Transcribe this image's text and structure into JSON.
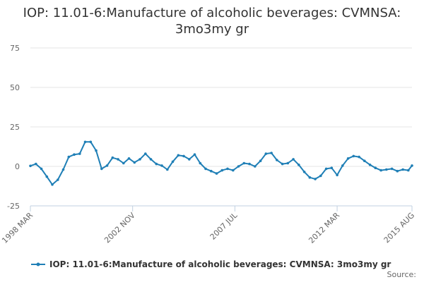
{
  "chart_data": {
    "type": "line",
    "title_line1": "IOP: 11.01-6:Manufacture of alcoholic beverages: CVMNSA:",
    "title_line2": "3mo3my gr",
    "y_ticks": [
      "75",
      "50",
      "25",
      "0",
      "-25"
    ],
    "ylim": [
      -25,
      75
    ],
    "x_range": [
      "1998-03",
      "2015-08"
    ],
    "x_ticks": [
      {
        "label": "1998 MAR",
        "date": "1998-03"
      },
      {
        "label": "2002 NOV",
        "date": "2002-11"
      },
      {
        "label": "2007 JUL",
        "date": "2007-07"
      },
      {
        "label": "2012 MAR",
        "date": "2012-03"
      },
      {
        "label": "2015 AUG",
        "date": "2015-08"
      }
    ],
    "series": [
      {
        "name": "IOP: 11.01-6:Manufacture of alcoholic beverages: CVMNSA: 3mo3my gr",
        "color": "#1f7fb6",
        "points": [
          [
            "1998-03",
            0.3
          ],
          [
            "1998-06",
            1.5
          ],
          [
            "1998-09",
            -1.5
          ],
          [
            "1998-12",
            -6.5
          ],
          [
            "1999-03",
            -11.5
          ],
          [
            "1999-06",
            -8.5
          ],
          [
            "1999-09",
            -2.0
          ],
          [
            "1999-12",
            6.0
          ],
          [
            "2000-03",
            7.5
          ],
          [
            "2000-06",
            8.0
          ],
          [
            "2000-09",
            15.5
          ],
          [
            "2000-12",
            15.5
          ],
          [
            "2001-03",
            10.0
          ],
          [
            "2001-06",
            -1.5
          ],
          [
            "2001-09",
            0.5
          ],
          [
            "2001-12",
            5.5
          ],
          [
            "2002-03",
            4.5
          ],
          [
            "2002-06",
            2.0
          ],
          [
            "2002-09",
            5.0
          ],
          [
            "2002-12",
            2.5
          ],
          [
            "2003-03",
            4.5
          ],
          [
            "2003-06",
            8.0
          ],
          [
            "2003-09",
            4.5
          ],
          [
            "2003-12",
            1.5
          ],
          [
            "2004-03",
            0.5
          ],
          [
            "2004-06",
            -2.0
          ],
          [
            "2004-09",
            3.0
          ],
          [
            "2004-12",
            7.0
          ],
          [
            "2005-03",
            6.5
          ],
          [
            "2005-06",
            4.5
          ],
          [
            "2005-09",
            7.5
          ],
          [
            "2005-12",
            2.0
          ],
          [
            "2006-03",
            -1.5
          ],
          [
            "2006-06",
            -3.0
          ],
          [
            "2006-09",
            -4.5
          ],
          [
            "2006-12",
            -2.5
          ],
          [
            "2007-03",
            -1.5
          ],
          [
            "2007-06",
            -2.5
          ],
          [
            "2007-09",
            0.0
          ],
          [
            "2007-12",
            2.0
          ],
          [
            "2008-03",
            1.5
          ],
          [
            "2008-06",
            0.0
          ],
          [
            "2008-09",
            3.5
          ],
          [
            "2008-12",
            8.0
          ],
          [
            "2009-03",
            8.5
          ],
          [
            "2009-06",
            4.0
          ],
          [
            "2009-09",
            1.5
          ],
          [
            "2009-12",
            2.0
          ],
          [
            "2010-03",
            4.5
          ],
          [
            "2010-06",
            1.0
          ],
          [
            "2010-09",
            -3.5
          ],
          [
            "2010-12",
            -7.0
          ],
          [
            "2011-03",
            -8.0
          ],
          [
            "2011-06",
            -6.0
          ],
          [
            "2011-09",
            -1.5
          ],
          [
            "2011-12",
            -1.0
          ],
          [
            "2012-03",
            -5.5
          ],
          [
            "2012-06",
            0.5
          ],
          [
            "2012-09",
            5.0
          ],
          [
            "2012-12",
            6.5
          ],
          [
            "2013-03",
            6.0
          ],
          [
            "2013-06",
            3.5
          ],
          [
            "2013-09",
            1.0
          ],
          [
            "2013-12",
            -1.0
          ],
          [
            "2014-03",
            -2.5
          ],
          [
            "2014-06",
            -2.0
          ],
          [
            "2014-09",
            -1.5
          ],
          [
            "2014-12",
            -3.0
          ],
          [
            "2015-03",
            -2.0
          ],
          [
            "2015-06",
            -2.5
          ],
          [
            "2015-08",
            0.5
          ]
        ]
      }
    ]
  },
  "legend": {
    "label": "IOP: 11.01-6:Manufacture of alcoholic beverages: CVMNSA: 3mo3my gr"
  },
  "source_label": "Source:"
}
